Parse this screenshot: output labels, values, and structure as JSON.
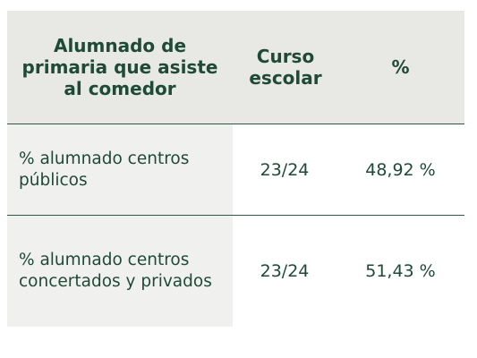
{
  "table": {
    "headers": [
      "Alumnado de primaria que asiste al comedor",
      "Curso escolar",
      "%"
    ],
    "rows": [
      {
        "label": "% alumnado centros públicos",
        "curso": "23/24",
        "percent": "48,92 %"
      },
      {
        "label": "% alumnado centros concertados y privados",
        "curso": "23/24",
        "percent": "51,43 %"
      }
    ]
  },
  "colors": {
    "text": "#1f4a38",
    "header_bg": "#e8e8e5",
    "label_bg": "#f0f0ee",
    "divider": "#2f5a48"
  }
}
